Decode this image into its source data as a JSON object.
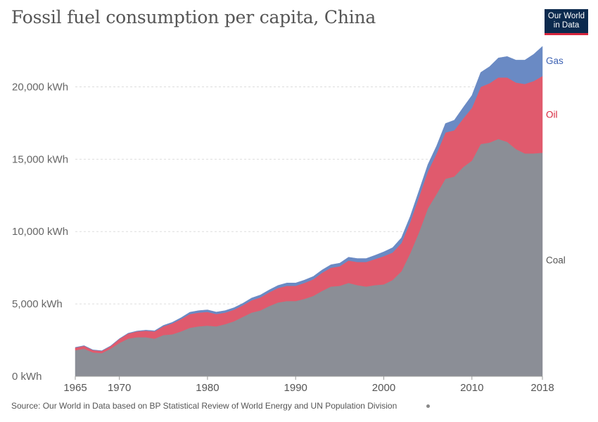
{
  "title": "Fossil fuel consumption per capita, China",
  "logo": {
    "line1": "Our World",
    "line2": "in Data"
  },
  "source": "Source: Our World in Data based on BP Statistical Review of World Energy and UN Population Division",
  "chart_data": {
    "type": "area",
    "stacked": true,
    "x": [
      1965,
      1966,
      1967,
      1968,
      1969,
      1970,
      1971,
      1972,
      1973,
      1974,
      1975,
      1976,
      1977,
      1978,
      1979,
      1980,
      1981,
      1982,
      1983,
      1984,
      1985,
      1986,
      1987,
      1988,
      1989,
      1990,
      1991,
      1992,
      1993,
      1994,
      1995,
      1996,
      1997,
      1998,
      1999,
      2000,
      2001,
      2002,
      2003,
      2004,
      2005,
      2006,
      2007,
      2008,
      2009,
      2010,
      2011,
      2012,
      2013,
      2014,
      2015,
      2016,
      2017,
      2018
    ],
    "series": [
      {
        "name": "Coal",
        "color": "#8b8e96",
        "values": [
          1800,
          1900,
          1650,
          1600,
          1900,
          2300,
          2600,
          2700,
          2700,
          2600,
          2850,
          2900,
          3100,
          3350,
          3450,
          3500,
          3450,
          3600,
          3800,
          4100,
          4400,
          4550,
          4850,
          5100,
          5200,
          5200,
          5350,
          5550,
          5900,
          6200,
          6250,
          6450,
          6300,
          6200,
          6300,
          6350,
          6650,
          7250,
          8500,
          9950,
          11600,
          12600,
          13650,
          13800,
          14450,
          14900,
          16050,
          16150,
          16400,
          16200,
          15700,
          15400,
          15400,
          15450
        ]
      },
      {
        "name": "Oil",
        "color": "#e05a6d",
        "values": [
          180,
          200,
          160,
          150,
          180,
          280,
          350,
          400,
          450,
          500,
          600,
          750,
          850,
          950,
          950,
          950,
          850,
          800,
          800,
          800,
          850,
          900,
          950,
          1000,
          1050,
          1050,
          1100,
          1150,
          1250,
          1300,
          1350,
          1550,
          1600,
          1700,
          1800,
          1950,
          1900,
          1950,
          2150,
          2450,
          2550,
          2800,
          3200,
          3200,
          3350,
          3650,
          3950,
          4100,
          4250,
          4450,
          4600,
          4800,
          5000,
          5300
        ]
      },
      {
        "name": "Gas",
        "color": "#6a8ac4",
        "values": [
          20,
          20,
          20,
          20,
          20,
          20,
          30,
          30,
          40,
          50,
          70,
          80,
          100,
          130,
          140,
          140,
          140,
          140,
          140,
          140,
          160,
          170,
          170,
          180,
          200,
          200,
          200,
          200,
          200,
          210,
          220,
          230,
          240,
          240,
          260,
          300,
          340,
          370,
          400,
          430,
          480,
          530,
          620,
          700,
          770,
          860,
          1000,
          1150,
          1350,
          1450,
          1550,
          1650,
          1850,
          2050
        ]
      }
    ],
    "ylim": [
      0,
      22600
    ],
    "yticks": [
      0,
      5000,
      10000,
      15000,
      20000
    ],
    "ytick_labels": [
      "0 kWh",
      "5,000 kWh",
      "10,000 kWh",
      "15,000 kWh",
      "20,000 kWh"
    ],
    "xticks": [
      1965,
      1970,
      1980,
      1990,
      2000,
      2010,
      2018
    ],
    "xtick_labels": [
      "1965",
      "1970",
      "1980",
      "1990",
      "2000",
      "2010",
      "2018"
    ],
    "xlim": [
      1965,
      2018
    ],
    "grid": true
  }
}
